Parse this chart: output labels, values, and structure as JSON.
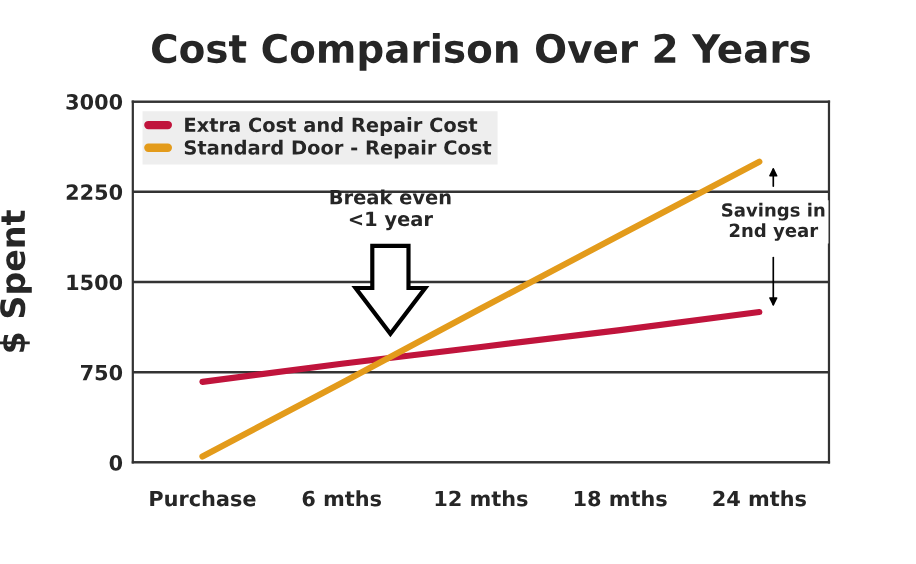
{
  "chart_data": {
    "type": "line",
    "title": "Cost Comparison Over 2 Years",
    "ylabel": "$ Spent",
    "categories": [
      "Purchase",
      "6 mths",
      "12 mths",
      "18 mths",
      "24 mths"
    ],
    "series": [
      {
        "name": "Extra Cost and Repair Cost",
        "color": "#c0143c",
        "values": [
          670,
          820,
          960,
          1100,
          1250
        ]
      },
      {
        "name": "Standard Door - Repair Cost",
        "color": "#e39b1b",
        "values": [
          50,
          660,
          1280,
          1890,
          2500
        ]
      }
    ],
    "ylim": [
      0,
      3000
    ],
    "yticks": [
      0,
      750,
      1500,
      2250,
      3000
    ],
    "grid": "y",
    "legend": "top left",
    "annotations": [
      "Break even\n<1 year",
      "Savings in\n2nd year"
    ]
  }
}
